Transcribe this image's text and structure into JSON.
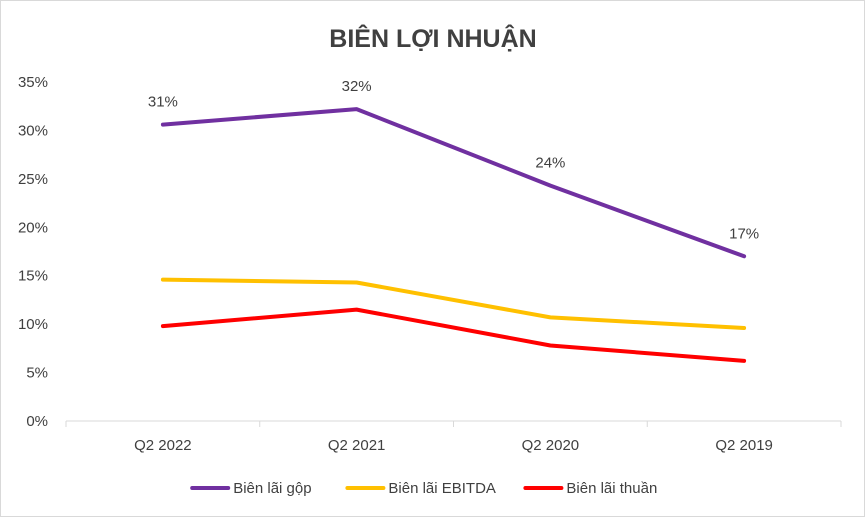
{
  "chart_data": {
    "type": "line",
    "title": "BIÊN LỢI NHUẬN",
    "xlabel": "",
    "ylabel": "",
    "categories": [
      "Q2 2022",
      "Q2 2021",
      "Q2 2020",
      "Q2 2019"
    ],
    "ylim": [
      0,
      35
    ],
    "yticks": [
      0,
      5,
      10,
      15,
      20,
      25,
      30,
      35
    ],
    "ytick_labels": [
      "0%",
      "5%",
      "10%",
      "15%",
      "20%",
      "25%",
      "30%",
      "35%"
    ],
    "grid": false,
    "legend_position": "bottom",
    "series": [
      {
        "name": "Biên lãi gộp",
        "color": "#7030a0",
        "values": [
          30.6,
          32.2,
          24.3,
          17.0
        ],
        "data_labels": [
          "31%",
          "32%",
          "24%",
          "17%"
        ]
      },
      {
        "name": "Biên lãi EBITDA",
        "color": "#ffc000",
        "values": [
          14.6,
          14.3,
          10.7,
          9.6
        ],
        "data_labels": []
      },
      {
        "name": "Biên lãi thuần",
        "color": "#ff0000",
        "values": [
          9.8,
          11.5,
          7.8,
          6.2
        ],
        "data_labels": []
      }
    ]
  }
}
